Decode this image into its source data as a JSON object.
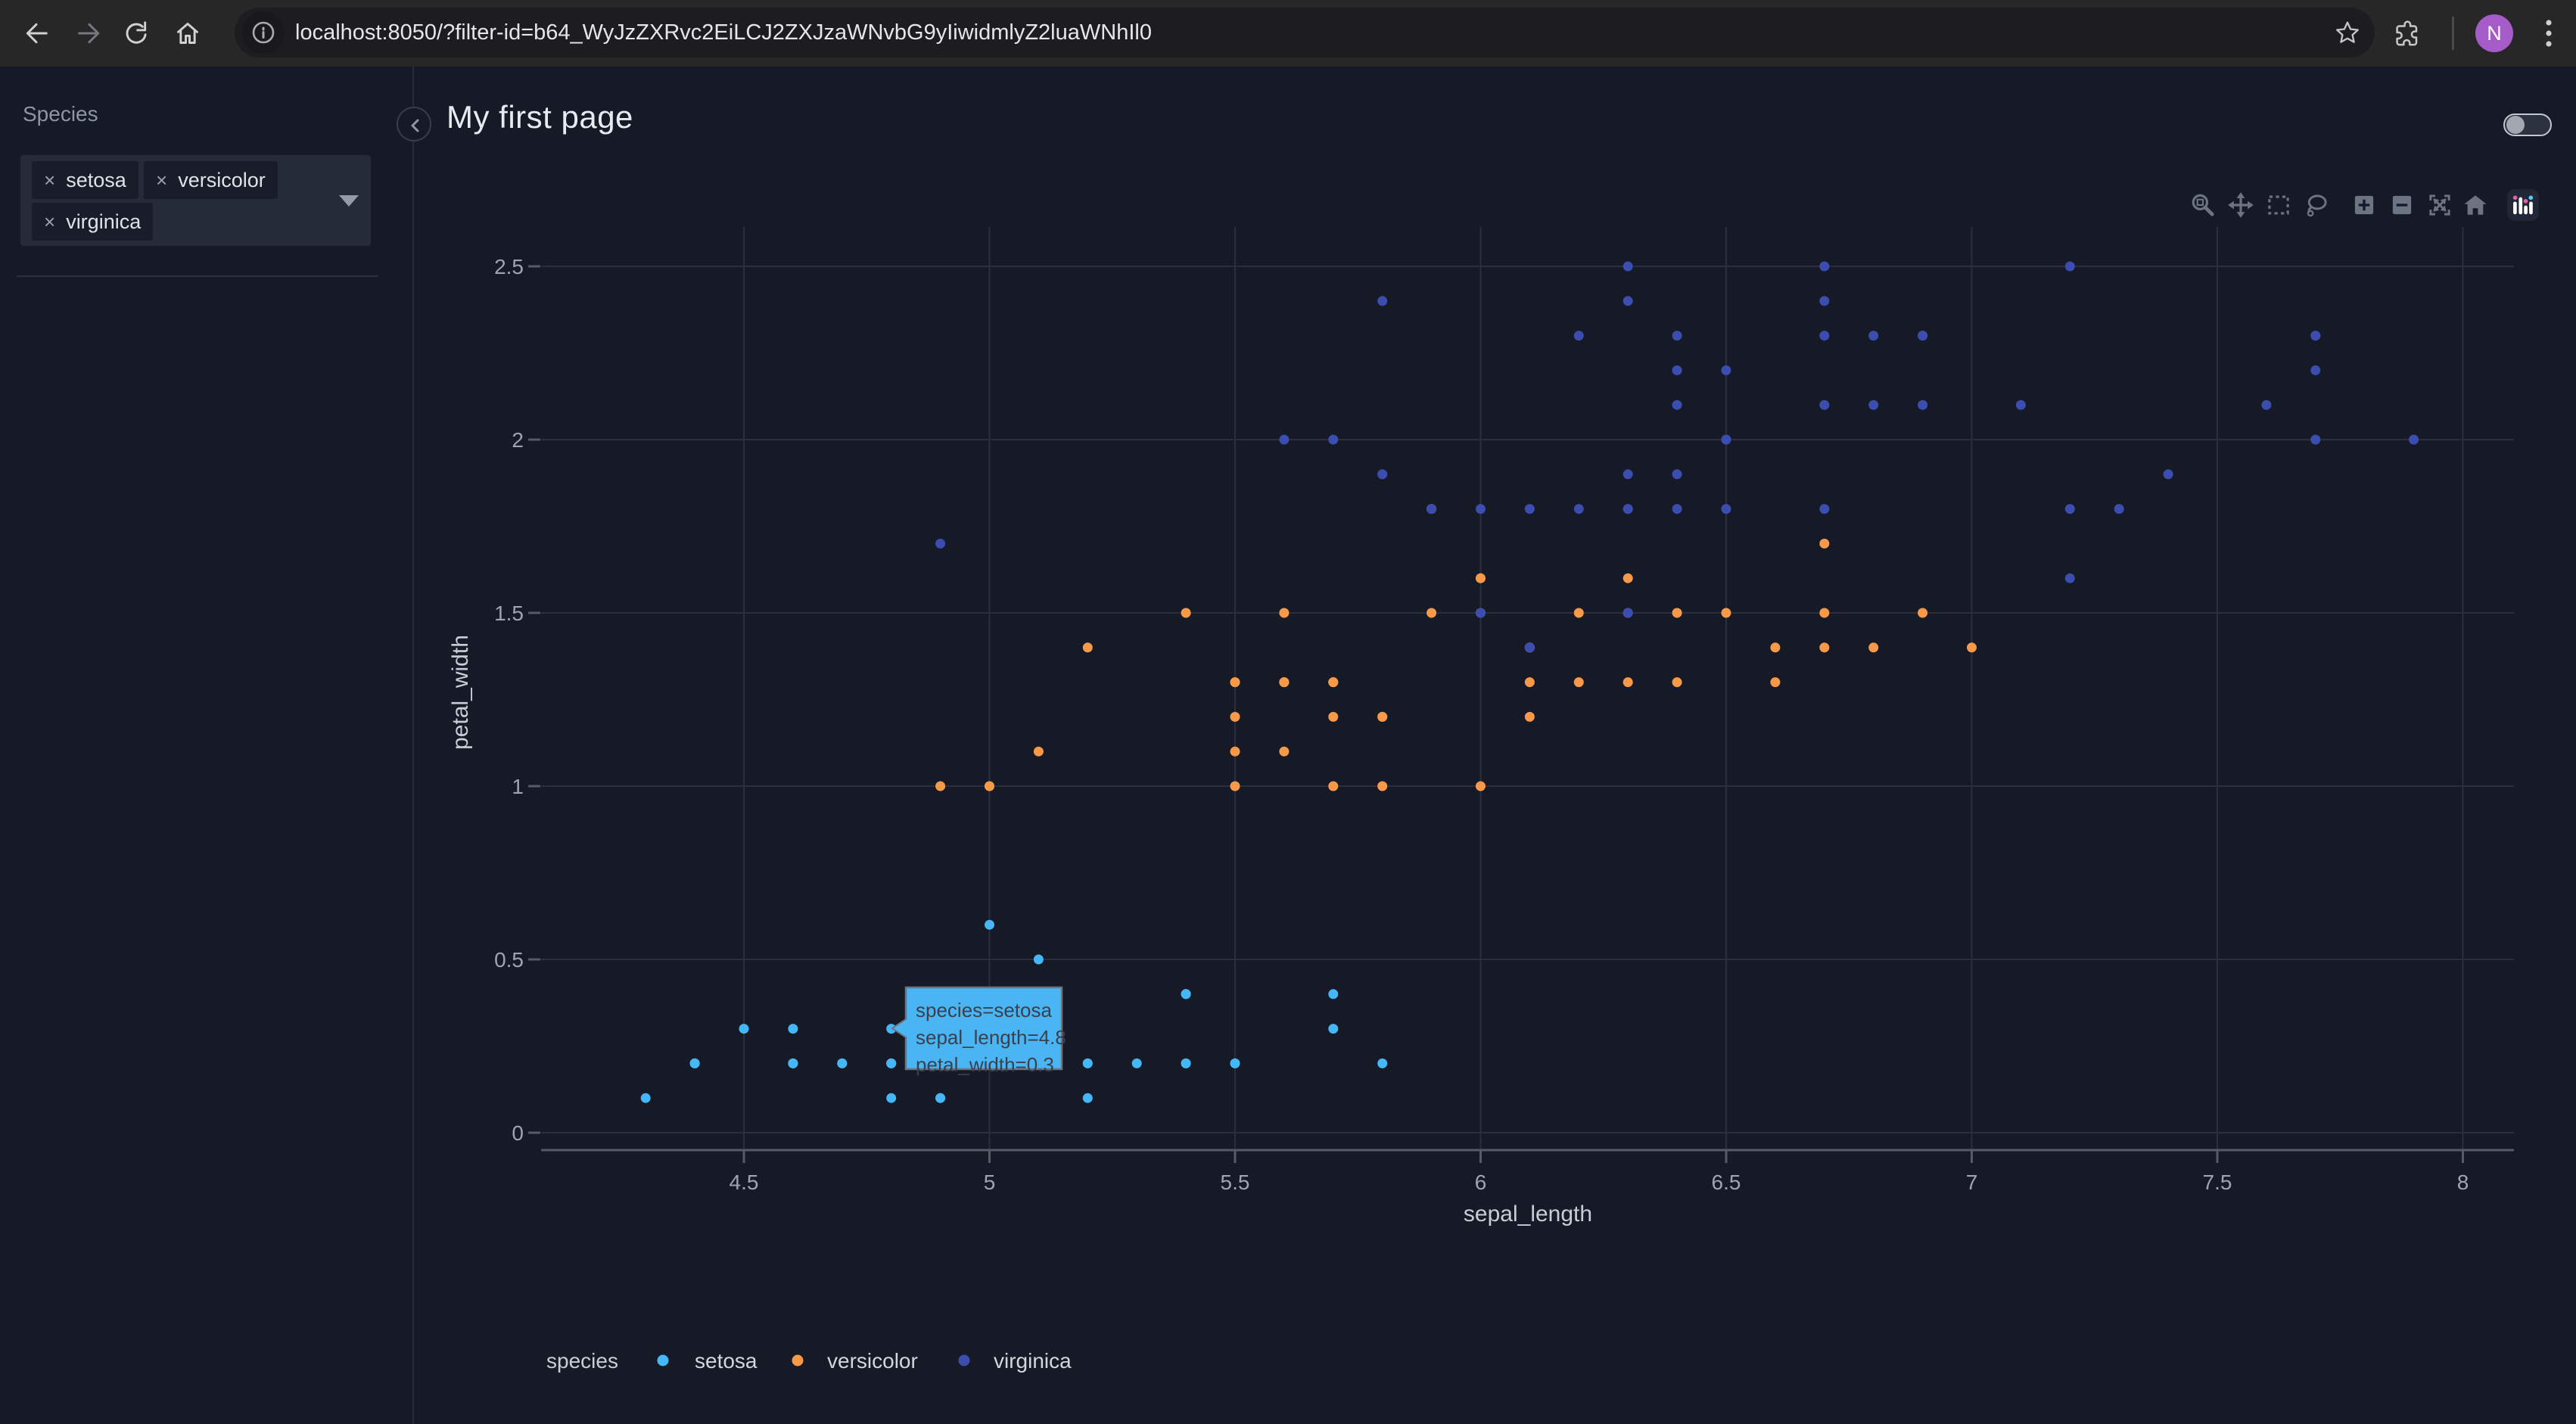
{
  "browser": {
    "url": "localhost:8050/?filter-id=b64_WyJzZXRvc2EiLCJ2ZXJzaWNvbG9yIiwidmlyZ2luaWNhIl0",
    "avatar_initial": "N"
  },
  "sidebar": {
    "filter_label": "Species",
    "chip_remove_symbol": "×",
    "chips": [
      "setosa",
      "versicolor",
      "virginica"
    ]
  },
  "header": {
    "title": "My first page"
  },
  "modebar": {
    "tools": [
      "zoom",
      "pan",
      "box-select",
      "lasso-select",
      "zoom-in",
      "zoom-out",
      "autoscale",
      "reset-axes",
      "plotly-logo"
    ]
  },
  "tooltip": {
    "lines": [
      "species=setosa",
      "sepal_length=4.8",
      "petal_width=0.3"
    ],
    "bg": "#49b5f3",
    "border": "#6e747e",
    "text_color": "#3a404d"
  },
  "colors": {
    "page_bg": "#161a26",
    "grid": "#2b2f3c",
    "axis_line": "#565b66",
    "tick": "#565b66",
    "tick_label": "#9ea4b0",
    "axis_title": "#c9cdd7",
    "legend_text": "#d2d6de"
  },
  "chart_data": {
    "type": "scatter",
    "xlabel": "sepal_length",
    "ylabel": "petal_width",
    "legend_title": "species",
    "x_ticks": [
      4.5,
      5,
      5.5,
      6,
      6.5,
      7,
      7.5,
      8
    ],
    "y_ticks": [
      0,
      0.5,
      1,
      1.5,
      2,
      2.5
    ],
    "x_range": [
      4.09,
      8.11
    ],
    "y_range": [
      -0.05,
      2.61
    ],
    "grid": true,
    "legend_position": "bottom",
    "hovered_point": {
      "species": "setosa",
      "sepal_length": 4.8,
      "petal_width": 0.3
    },
    "series": [
      {
        "name": "setosa",
        "color": "#45b6f6",
        "points": [
          [
            5.1,
            0.2
          ],
          [
            4.9,
            0.2
          ],
          [
            4.7,
            0.2
          ],
          [
            4.6,
            0.2
          ],
          [
            5.0,
            0.2
          ],
          [
            5.4,
            0.4
          ],
          [
            4.6,
            0.3
          ],
          [
            5.0,
            0.2
          ],
          [
            4.4,
            0.2
          ],
          [
            4.9,
            0.1
          ],
          [
            5.4,
            0.2
          ],
          [
            4.8,
            0.2
          ],
          [
            4.8,
            0.1
          ],
          [
            4.3,
            0.1
          ],
          [
            5.8,
            0.2
          ],
          [
            5.7,
            0.4
          ],
          [
            5.4,
            0.4
          ],
          [
            5.1,
            0.3
          ],
          [
            5.7,
            0.3
          ],
          [
            5.1,
            0.3
          ],
          [
            5.4,
            0.2
          ],
          [
            5.1,
            0.4
          ],
          [
            4.6,
            0.2
          ],
          [
            5.1,
            0.5
          ],
          [
            4.8,
            0.2
          ],
          [
            5.0,
            0.2
          ],
          [
            5.0,
            0.4
          ],
          [
            5.2,
            0.2
          ],
          [
            5.2,
            0.2
          ],
          [
            4.7,
            0.2
          ],
          [
            4.8,
            0.2
          ],
          [
            5.4,
            0.4
          ],
          [
            5.2,
            0.1
          ],
          [
            5.5,
            0.2
          ],
          [
            4.9,
            0.2
          ],
          [
            5.0,
            0.2
          ],
          [
            5.5,
            0.2
          ],
          [
            4.9,
            0.1
          ],
          [
            4.4,
            0.2
          ],
          [
            5.1,
            0.2
          ],
          [
            5.0,
            0.3
          ],
          [
            4.5,
            0.3
          ],
          [
            4.4,
            0.2
          ],
          [
            5.0,
            0.6
          ],
          [
            5.1,
            0.4
          ],
          [
            4.8,
            0.3
          ],
          [
            5.1,
            0.2
          ],
          [
            4.6,
            0.2
          ],
          [
            5.3,
            0.2
          ],
          [
            5.0,
            0.2
          ]
        ]
      },
      {
        "name": "versicolor",
        "color": "#f69a4a",
        "points": [
          [
            7.0,
            1.4
          ],
          [
            6.4,
            1.5
          ],
          [
            6.9,
            1.5
          ],
          [
            5.5,
            1.3
          ],
          [
            6.5,
            1.5
          ],
          [
            5.7,
            1.3
          ],
          [
            6.3,
            1.6
          ],
          [
            4.9,
            1.0
          ],
          [
            6.6,
            1.3
          ],
          [
            5.2,
            1.4
          ],
          [
            5.0,
            1.0
          ],
          [
            5.9,
            1.5
          ],
          [
            6.0,
            1.0
          ],
          [
            6.1,
            1.4
          ],
          [
            5.6,
            1.3
          ],
          [
            6.7,
            1.4
          ],
          [
            5.6,
            1.5
          ],
          [
            5.8,
            1.0
          ],
          [
            6.2,
            1.5
          ],
          [
            5.6,
            1.1
          ],
          [
            5.9,
            1.8
          ],
          [
            6.1,
            1.3
          ],
          [
            6.3,
            1.5
          ],
          [
            6.1,
            1.2
          ],
          [
            6.4,
            1.3
          ],
          [
            6.6,
            1.4
          ],
          [
            6.8,
            1.4
          ],
          [
            6.7,
            1.7
          ],
          [
            6.0,
            1.5
          ],
          [
            5.7,
            1.0
          ],
          [
            5.5,
            1.1
          ],
          [
            5.5,
            1.0
          ],
          [
            5.8,
            1.2
          ],
          [
            6.0,
            1.6
          ],
          [
            5.4,
            1.5
          ],
          [
            6.0,
            1.6
          ],
          [
            6.7,
            1.5
          ],
          [
            6.3,
            1.3
          ],
          [
            5.6,
            1.3
          ],
          [
            5.5,
            1.3
          ],
          [
            5.5,
            1.2
          ],
          [
            6.1,
            1.4
          ],
          [
            5.8,
            1.2
          ],
          [
            5.0,
            1.0
          ],
          [
            5.6,
            1.3
          ],
          [
            5.7,
            1.2
          ],
          [
            5.7,
            1.3
          ],
          [
            6.2,
            1.3
          ],
          [
            5.1,
            1.1
          ],
          [
            5.7,
            1.3
          ]
        ]
      },
      {
        "name": "virginica",
        "color": "#3c4db0",
        "points": [
          [
            6.3,
            2.5
          ],
          [
            5.8,
            1.9
          ],
          [
            7.1,
            2.1
          ],
          [
            6.3,
            1.8
          ],
          [
            6.5,
            2.2
          ],
          [
            7.6,
            2.1
          ],
          [
            4.9,
            1.7
          ],
          [
            7.3,
            1.8
          ],
          [
            6.7,
            1.8
          ],
          [
            7.2,
            2.5
          ],
          [
            6.5,
            2.0
          ],
          [
            6.4,
            1.9
          ],
          [
            6.8,
            2.1
          ],
          [
            5.7,
            2.0
          ],
          [
            5.8,
            2.4
          ],
          [
            6.4,
            2.3
          ],
          [
            6.5,
            1.8
          ],
          [
            7.7,
            2.2
          ],
          [
            7.7,
            2.3
          ],
          [
            6.0,
            1.5
          ],
          [
            6.9,
            2.3
          ],
          [
            5.6,
            2.0
          ],
          [
            7.7,
            2.0
          ],
          [
            6.3,
            1.8
          ],
          [
            6.7,
            2.1
          ],
          [
            7.2,
            1.8
          ],
          [
            6.2,
            1.8
          ],
          [
            6.1,
            1.8
          ],
          [
            6.4,
            2.1
          ],
          [
            7.2,
            1.6
          ],
          [
            7.4,
            1.9
          ],
          [
            7.9,
            2.0
          ],
          [
            6.4,
            2.2
          ],
          [
            6.3,
            1.5
          ],
          [
            6.1,
            1.4
          ],
          [
            7.7,
            2.3
          ],
          [
            6.3,
            2.4
          ],
          [
            6.4,
            1.8
          ],
          [
            6.0,
            1.8
          ],
          [
            6.9,
            2.1
          ],
          [
            6.7,
            2.4
          ],
          [
            6.9,
            2.3
          ],
          [
            5.8,
            1.9
          ],
          [
            6.8,
            2.3
          ],
          [
            6.7,
            2.5
          ],
          [
            6.7,
            2.3
          ],
          [
            6.3,
            1.9
          ],
          [
            6.5,
            2.0
          ],
          [
            6.2,
            2.3
          ],
          [
            5.9,
            1.8
          ]
        ]
      }
    ]
  }
}
